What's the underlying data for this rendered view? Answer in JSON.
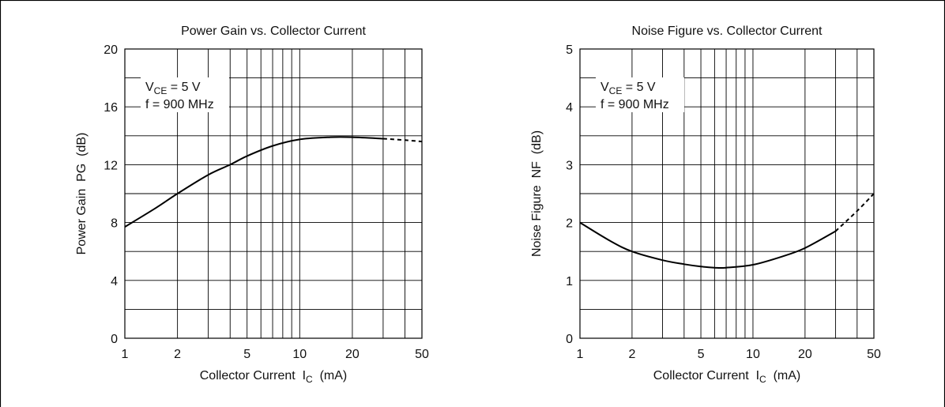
{
  "chart_data": [
    {
      "type": "line",
      "title": "Power Gain vs. Collector Current",
      "xlabel": "Collector Current",
      "xlabel_symbol": "I",
      "xlabel_sub": "C",
      "xlabel_unit": "(mA)",
      "ylabel": "Power Gain  PG  (dB)",
      "xscale": "log",
      "xlim": [
        1,
        50
      ],
      "ylim": [
        0,
        20
      ],
      "x_ticks": [
        1,
        2,
        5,
        10,
        20,
        50
      ],
      "x_tick_labels": [
        "1",
        "2",
        "5",
        "10",
        "20",
        "50"
      ],
      "y_ticks": [
        0,
        4,
        8,
        12,
        16,
        20
      ],
      "y_tick_labels": [
        "0",
        "4",
        "8",
        "12",
        "16",
        "20"
      ],
      "y_minor_step": 2,
      "grid": true,
      "annotation": {
        "line1_pre": "V",
        "line1_sub": "CE",
        "line1_post": " = 5 V",
        "line2": "f = 900 MHz"
      },
      "series": [
        {
          "style": "solid",
          "x": [
            1,
            1.5,
            2,
            3,
            4,
            5,
            7,
            10,
            15,
            20,
            30
          ],
          "y": [
            7.7,
            9.0,
            10.0,
            11.3,
            12.0,
            12.6,
            13.3,
            13.75,
            13.9,
            13.9,
            13.8
          ]
        },
        {
          "style": "dashed",
          "x": [
            30,
            40,
            50
          ],
          "y": [
            13.8,
            13.7,
            13.6
          ]
        }
      ]
    },
    {
      "type": "line",
      "title": "Noise Figure vs. Collector Current",
      "xlabel": "Collector Current",
      "xlabel_symbol": "I",
      "xlabel_sub": "C",
      "xlabel_unit": "(mA)",
      "ylabel": "Noise Figure  NF  (dB)",
      "xscale": "log",
      "xlim": [
        1,
        50
      ],
      "ylim": [
        0,
        5
      ],
      "x_ticks": [
        1,
        2,
        5,
        10,
        20,
        50
      ],
      "x_tick_labels": [
        "1",
        "2",
        "5",
        "10",
        "20",
        "50"
      ],
      "y_ticks": [
        0,
        1,
        2,
        3,
        4,
        5
      ],
      "y_tick_labels": [
        "0",
        "1",
        "2",
        "3",
        "4",
        "5"
      ],
      "y_minor_step": 0.5,
      "grid": true,
      "annotation": {
        "line1_pre": "V",
        "line1_sub": "CE",
        "line1_post": " = 5 V",
        "line2": "f = 900 MHz"
      },
      "series": [
        {
          "style": "solid",
          "x": [
            1,
            1.5,
            2,
            3,
            4,
            5,
            6,
            7,
            10,
            15,
            20,
            30
          ],
          "y": [
            2.0,
            1.68,
            1.5,
            1.35,
            1.28,
            1.24,
            1.22,
            1.22,
            1.27,
            1.42,
            1.56,
            1.85
          ]
        },
        {
          "style": "dashed",
          "x": [
            30,
            40,
            50
          ],
          "y": [
            1.85,
            2.2,
            2.5
          ]
        }
      ]
    }
  ]
}
